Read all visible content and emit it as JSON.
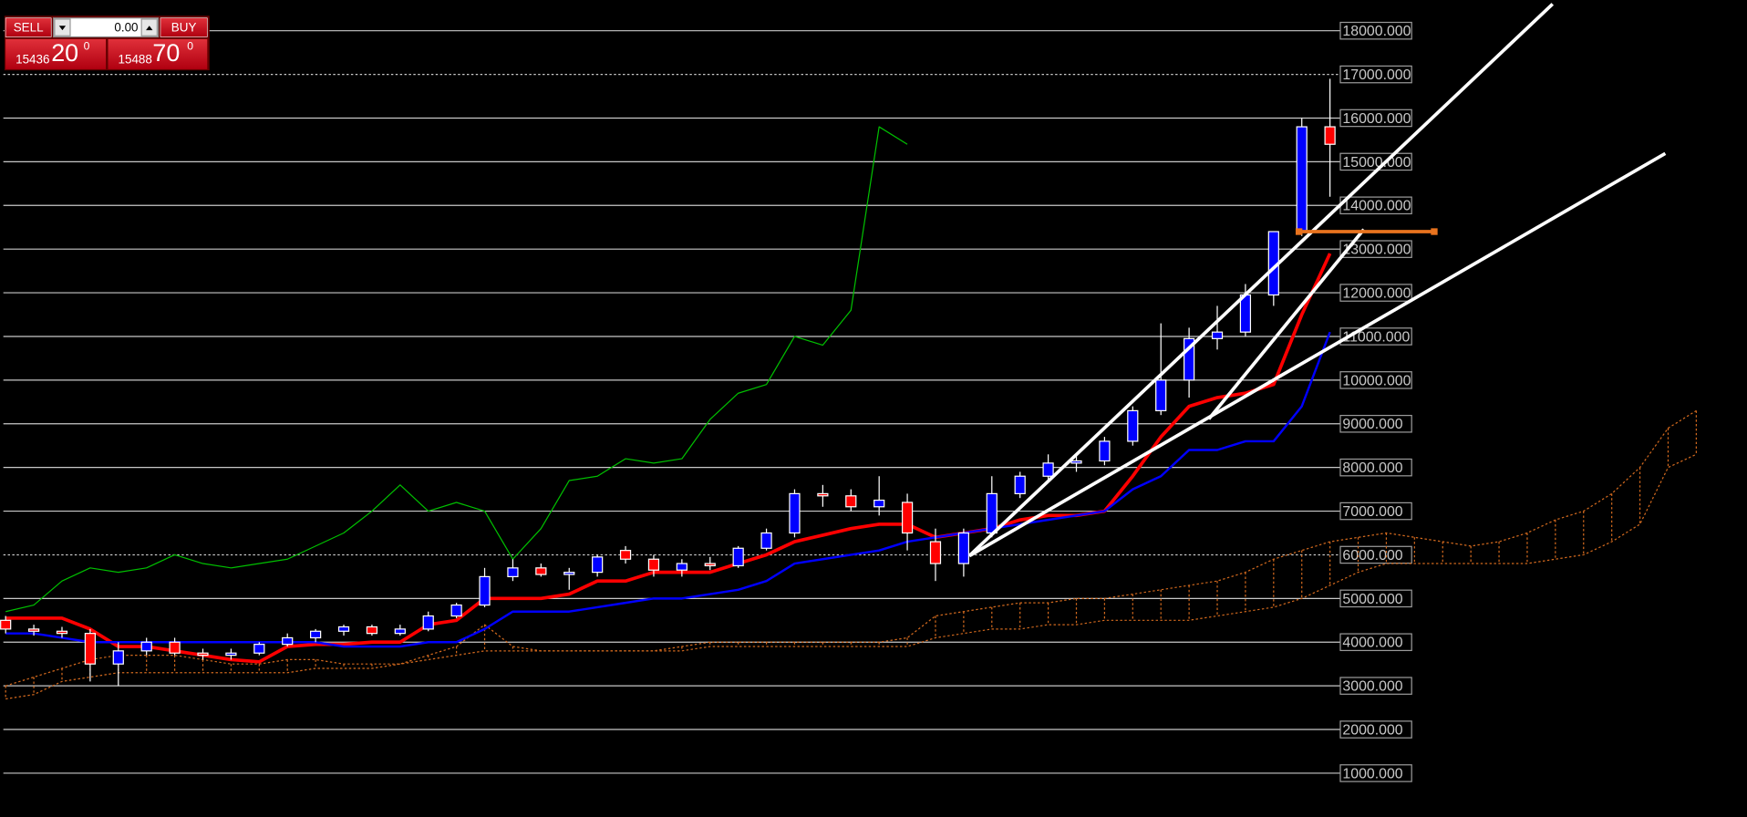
{
  "chart_data": {
    "type": "candlestick",
    "trade_panel": {
      "sell": "SELL",
      "lot": "0.00",
      "buy": "BUY",
      "bid": {
        "prefix": "15436",
        "big": "20",
        "sup": "0"
      },
      "ask": {
        "prefix": "15488",
        "big": "70",
        "sup": "0"
      }
    },
    "xlim": [
      -0.2,
      61.8
    ],
    "ylim": [
      0,
      18700
    ],
    "yticks": [
      {
        "value": 1000,
        "label": "1000.000"
      },
      {
        "value": 2000,
        "label": "2000.000"
      },
      {
        "value": 3000,
        "label": "3000.000"
      },
      {
        "value": 4000,
        "label": "4000.000"
      },
      {
        "value": 5000,
        "label": "5000.000"
      },
      {
        "value": 6000,
        "label": "6000.000"
      },
      {
        "value": 7000,
        "label": "7000.000"
      },
      {
        "value": 8000,
        "label": "8000.000"
      },
      {
        "value": 9000,
        "label": "9000.000"
      },
      {
        "value": 10000,
        "label": "10000.000"
      },
      {
        "value": 11000,
        "label": "11000.000"
      },
      {
        "value": 12000,
        "label": "12000.000"
      },
      {
        "value": 13000,
        "label": "13000.000"
      },
      {
        "value": 14000,
        "label": "14000.000"
      },
      {
        "value": 15000,
        "label": "15000.000"
      },
      {
        "value": 16000,
        "label": "16000.000"
      },
      {
        "value": 17000,
        "label": "17000.000"
      },
      {
        "value": 18000,
        "label": "18000.000"
      }
    ],
    "dashed_ticks": [
      6000,
      17000
    ],
    "grid": true,
    "up_color": "#0000ff",
    "down_color": "#ff0000",
    "candles": {
      "open": [
        4500,
        4300,
        4250,
        4200,
        3500,
        3800,
        4000,
        3750,
        3700,
        3750,
        3950,
        4100,
        4250,
        4350,
        4200,
        4300,
        4600,
        4850,
        5500,
        5700,
        5550,
        5600,
        6100,
        5900,
        5650,
        5800,
        5750,
        6150,
        6500,
        7400,
        7350,
        7100,
        7200,
        6300,
        5800,
        6500,
        7400,
        7800,
        8100,
        8150,
        8600,
        9300,
        10000,
        10950,
        11100,
        11950,
        13400,
        15800
      ],
      "high": [
        4600,
        4400,
        4350,
        4300,
        4000,
        4100,
        4100,
        3850,
        3850,
        4000,
        4200,
        4300,
        4400,
        4400,
        4400,
        4700,
        4900,
        5700,
        5900,
        5800,
        5700,
        6000,
        6200,
        6000,
        5900,
        5950,
        6200,
        6600,
        7500,
        7600,
        7500,
        7800,
        7400,
        6600,
        6600,
        7800,
        7900,
        8300,
        8300,
        8700,
        9400,
        11300,
        11200,
        11700,
        12200,
        13400,
        16000,
        16900
      ],
      "low": [
        4200,
        4150,
        4100,
        3100,
        3000,
        3700,
        3700,
        3600,
        3600,
        3700,
        3900,
        4000,
        4150,
        4150,
        4150,
        4250,
        4550,
        4800,
        5400,
        5500,
        5200,
        5500,
        5800,
        5500,
        5500,
        5650,
        5700,
        6100,
        6400,
        7100,
        7000,
        6900,
        6100,
        5400,
        5500,
        6400,
        7300,
        7700,
        7900,
        8050,
        8500,
        9200,
        9600,
        10700,
        11000,
        11700,
        13300,
        14200
      ],
      "close": [
        4300,
        4250,
        4200,
        3500,
        3800,
        4000,
        3750,
        3700,
        3750,
        3950,
        4100,
        4250,
        4350,
        4200,
        4300,
        4600,
        4850,
        5500,
        5700,
        5550,
        5600,
        5950,
        5900,
        5650,
        5800,
        5750,
        6150,
        6500,
        7400,
        7350,
        7100,
        7250,
        6500,
        5800,
        6500,
        7400,
        7800,
        8100,
        8150,
        8600,
        9300,
        10000,
        10950,
        11100,
        11950,
        13400,
        15800,
        15400
      ]
    },
    "lines": [
      {
        "color": "#ff0000",
        "width": 3,
        "values": [
          4550,
          4550,
          4550,
          4300,
          3900,
          3900,
          3800,
          3700,
          3600,
          3550,
          3900,
          3950,
          3950,
          4000,
          4000,
          4400,
          4500,
          5000,
          5000,
          5000,
          5100,
          5400,
          5400,
          5600,
          5600,
          5600,
          5800,
          6000,
          6300,
          6450,
          6600,
          6700,
          6700,
          6400,
          6500,
          6600,
          6800,
          6900,
          6900,
          7000,
          7800,
          8700,
          9400,
          9600,
          9700,
          9900,
          11500,
          12900
        ]
      },
      {
        "color": "#0000ff",
        "width": 2,
        "values": [
          4200,
          4200,
          4100,
          4000,
          4000,
          4000,
          4000,
          4000,
          4000,
          4000,
          4000,
          4000,
          3900,
          3900,
          3900,
          4000,
          4000,
          4300,
          4700,
          4700,
          4700,
          4800,
          4900,
          5000,
          5000,
          5100,
          5200,
          5400,
          5800,
          5900,
          6000,
          6100,
          6300,
          6400,
          6500,
          6600,
          6700,
          6800,
          6900,
          7000,
          7500,
          7800,
          8400,
          8400,
          8600,
          8600,
          9400,
          11100
        ]
      },
      {
        "color": "#00c000",
        "width": 1,
        "values": [
          4700,
          4850,
          5400,
          5700,
          5600,
          5700,
          6000,
          5800,
          5700,
          5800,
          5900,
          6200,
          6500,
          7000,
          7600,
          7000,
          7200,
          7000,
          5900,
          6600,
          7700,
          7800,
          8200,
          8100,
          8200,
          9100,
          9700,
          9900,
          11000,
          10800,
          11600,
          15800,
          15400
        ]
      }
    ],
    "cloud": {
      "color": "#d2691e",
      "span_a": [
        3000,
        3200,
        3400,
        3600,
        3700,
        3700,
        3700,
        3600,
        3500,
        3500,
        3600,
        3600,
        3500,
        3500,
        3500,
        3700,
        3900,
        4400,
        3900,
        3800,
        3800,
        3800,
        3800,
        3800,
        3900,
        4000,
        4000,
        4000,
        4000,
        4000,
        4000,
        4000,
        4100,
        4600,
        4700,
        4800,
        4900,
        4900,
        5000,
        5000,
        5100,
        5200,
        5300,
        5400,
        5600,
        5900,
        6100,
        6300,
        6400,
        6500,
        6400,
        6300,
        6200,
        6300,
        6500,
        6800,
        7000,
        7400,
        8000,
        8900,
        9300
      ],
      "span_b": [
        2700,
        2800,
        3100,
        3200,
        3300,
        3300,
        3300,
        3300,
        3300,
        3300,
        3300,
        3400,
        3400,
        3400,
        3500,
        3600,
        3700,
        3800,
        3800,
        3800,
        3800,
        3800,
        3800,
        3800,
        3800,
        3900,
        3900,
        3900,
        3900,
        3900,
        3900,
        3900,
        3900,
        4100,
        4200,
        4300,
        4300,
        4400,
        4400,
        4500,
        4500,
        4500,
        4500,
        4600,
        4700,
        4800,
        5000,
        5300,
        5600,
        5800,
        5800,
        5800,
        5800,
        5800,
        5800,
        5900,
        6000,
        6300,
        6700,
        8000,
        8300
      ]
    },
    "trendlines": [
      {
        "color": "#ffffff",
        "x": [
          34.2,
          54.9
        ],
        "y": [
          5976,
          18610
        ]
      },
      {
        "color": "#ffffff",
        "x": [
          34.2,
          58.9
        ],
        "y": [
          5976,
          15190
        ]
      },
      {
        "color": "#ffffff",
        "x": [
          42.7,
          48.2
        ],
        "y": [
          9110,
          13450
        ]
      },
      {
        "color": "#e8731e",
        "x": [
          45.9,
          50.7
        ],
        "y": [
          13400,
          13400
        ]
      }
    ]
  }
}
